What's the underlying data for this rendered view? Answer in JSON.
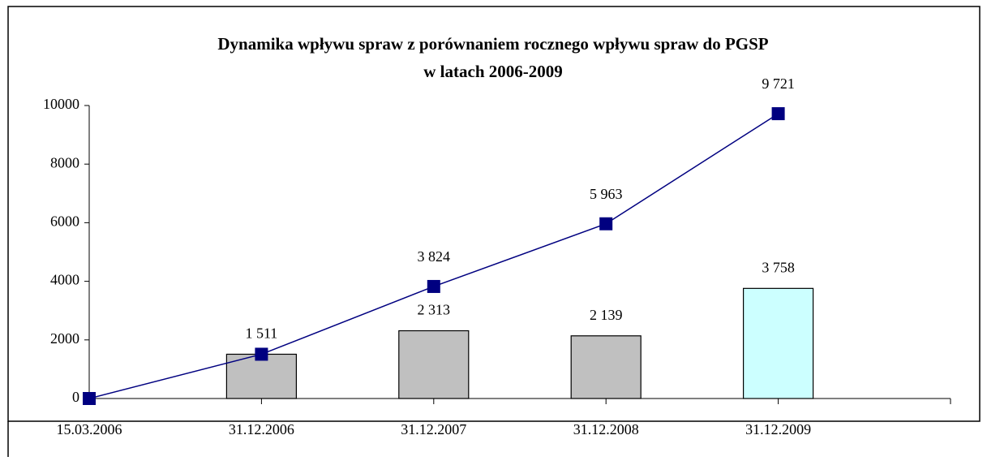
{
  "chart_data": {
    "type": "bar-line",
    "title": [
      "Dynamika wpływu spraw z porównaniem rocznego wpływu spraw do PGSP",
      "w latach 2006-2009"
    ],
    "categories": [
      "15.03.2006",
      "31.12.2006",
      "31.12.2007",
      "31.12.2008",
      "31.12.2009"
    ],
    "series": [
      {
        "type": "bar",
        "colors": [
          null,
          "#c0c0c0",
          "#c0c0c0",
          "#c0c0c0",
          "#ccffff"
        ],
        "values": [
          null,
          1511,
          2313,
          2139,
          3758
        ],
        "value_labels": [
          null,
          "1 511",
          "2 313",
          "2 139",
          "3 758"
        ]
      },
      {
        "type": "line",
        "color": "#000080",
        "values": [
          0,
          1511,
          3824,
          5963,
          9721
        ],
        "value_labels": [
          null,
          null,
          "3 824",
          "5 963",
          "9 721"
        ]
      }
    ],
    "ylim": [
      0,
      10000
    ],
    "yticks": [
      0,
      2000,
      4000,
      6000,
      8000,
      10000
    ]
  }
}
